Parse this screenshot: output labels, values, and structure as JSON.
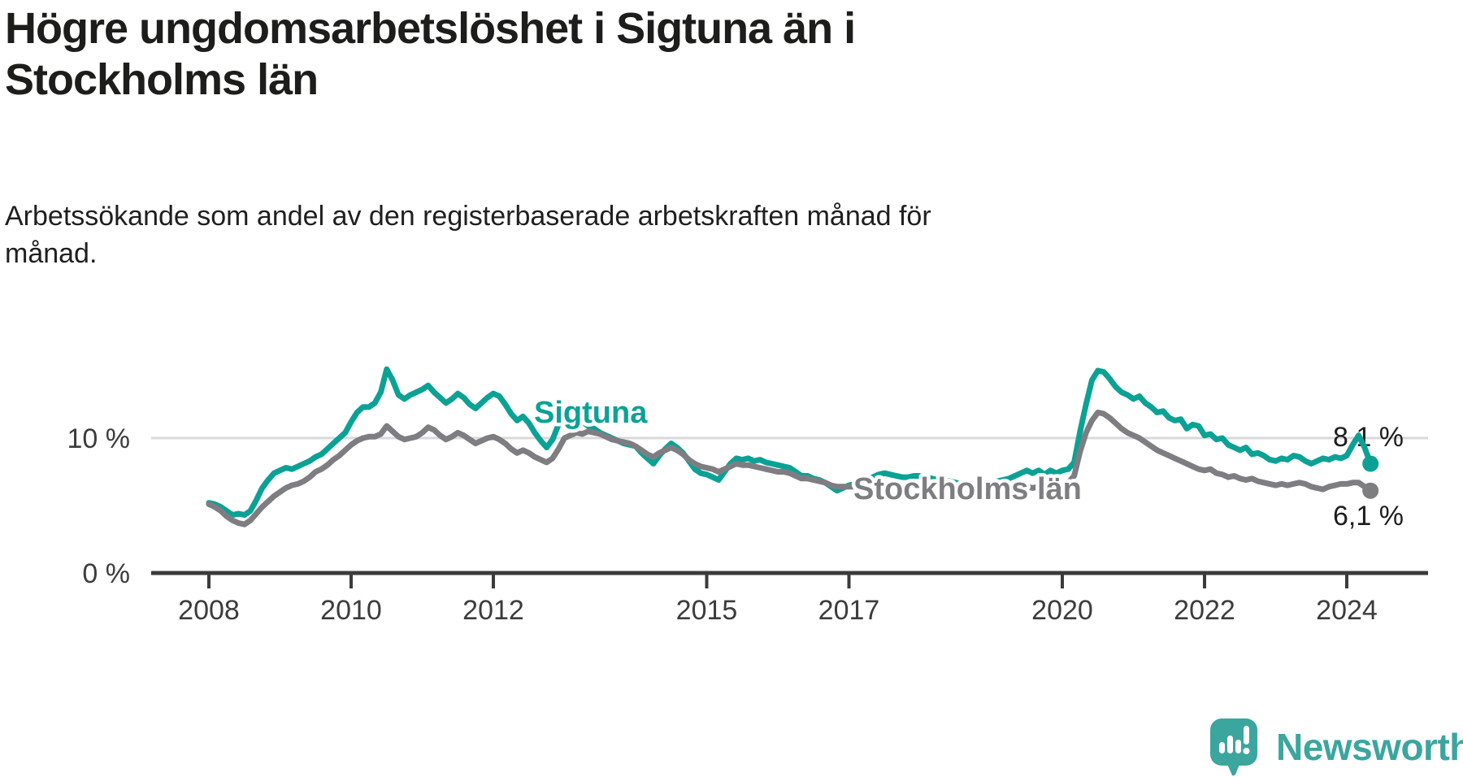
{
  "chart_data": {
    "type": "line",
    "title": "Högre ungdomsarbetslöshet i Sigtuna än i\nStockholms län",
    "subtitle": "Arbetssökande som andel av den registerbaserade arbetskraften månad för\nmånad.",
    "x_start": "2008-01",
    "x_interval": "monthly",
    "x_end": "2024-05",
    "x_tick_years": [
      2008,
      2010,
      2012,
      2015,
      2017,
      2020,
      2022,
      2024
    ],
    "y_ticks": [
      {
        "value": 10,
        "label": "10 %"
      },
      {
        "value": 0,
        "label": "0 %"
      }
    ],
    "ylim": [
      0,
      16.5
    ],
    "grid": "single-line-at-10",
    "legend": "inline-labels",
    "unit": "%",
    "colors": {
      "sigtuna": "#0ba295",
      "stockholm": "#7e7e82",
      "grid": "#d9d9d9",
      "axis": "#3b3b3b",
      "tick_text": "#3c3c3c",
      "value_text": "#1d1d1b",
      "halo": "#ffffff"
    },
    "series": [
      {
        "name": "Sigtuna",
        "end_label": "8,1 %",
        "end_value": 8.1,
        "values": [
          5.2,
          5.1,
          4.9,
          4.6,
          4.3,
          4.4,
          4.3,
          4.6,
          5.4,
          6.3,
          6.9,
          7.4,
          7.6,
          7.8,
          7.7,
          7.9,
          8.1,
          8.3,
          8.6,
          8.8,
          9.2,
          9.6,
          10.0,
          10.4,
          11.2,
          11.9,
          12.3,
          12.3,
          12.6,
          13.4,
          15.1,
          14.3,
          13.2,
          12.9,
          13.2,
          13.4,
          13.6,
          13.9,
          13.4,
          13.0,
          12.6,
          12.9,
          13.3,
          13.0,
          12.5,
          12.2,
          12.6,
          13.0,
          13.3,
          13.1,
          12.5,
          11.8,
          11.3,
          11.6,
          11.1,
          10.4,
          9.8,
          9.3,
          9.9,
          11.0,
          12.3,
          12.0,
          11.6,
          11.2,
          10.9,
          10.7,
          10.4,
          10.2,
          10.0,
          9.8,
          9.6,
          9.5,
          9.4,
          8.9,
          8.5,
          8.1,
          8.7,
          9.2,
          9.6,
          9.3,
          8.9,
          8.3,
          7.7,
          7.4,
          7.3,
          7.1,
          6.9,
          7.5,
          8.1,
          8.5,
          8.4,
          8.5,
          8.3,
          8.4,
          8.2,
          8.1,
          8.0,
          7.9,
          7.8,
          7.5,
          7.2,
          7.2,
          7.0,
          6.9,
          6.7,
          6.4,
          6.1,
          6.3,
          6.5,
          6.6,
          6.7,
          6.9,
          7.1,
          7.3,
          7.4,
          7.3,
          7.2,
          7.1,
          7.1,
          7.2,
          7.2,
          7.1,
          7.0,
          6.9,
          6.8,
          6.8,
          6.7,
          6.6,
          6.6,
          6.5,
          6.5,
          6.6,
          6.7,
          6.8,
          6.9,
          7.0,
          7.2,
          7.4,
          7.6,
          7.4,
          7.6,
          7.3,
          7.6,
          7.4,
          7.6,
          7.7,
          8.2,
          10.5,
          12.5,
          14.3,
          15.0,
          14.9,
          14.4,
          13.8,
          13.4,
          13.2,
          12.9,
          13.1,
          12.6,
          12.3,
          11.9,
          12.0,
          11.5,
          11.3,
          11.4,
          10.7,
          11.0,
          10.9,
          10.2,
          10.3,
          9.9,
          10.0,
          9.5,
          9.3,
          9.1,
          9.3,
          8.8,
          8.9,
          8.7,
          8.4,
          8.3,
          8.5,
          8.4,
          8.7,
          8.6,
          8.3,
          8.1,
          8.3,
          8.5,
          8.4,
          8.6,
          8.5,
          8.7,
          9.5,
          10.2,
          9.3,
          8.1
        ]
      },
      {
        "name": "Stockholms län",
        "end_label": "6,1 %",
        "end_value": 6.1,
        "values": [
          5.1,
          4.9,
          4.6,
          4.2,
          3.9,
          3.7,
          3.6,
          3.9,
          4.4,
          4.9,
          5.3,
          5.7,
          6.0,
          6.3,
          6.5,
          6.6,
          6.8,
          7.1,
          7.5,
          7.7,
          8.0,
          8.4,
          8.7,
          9.1,
          9.5,
          9.8,
          10.0,
          10.1,
          10.1,
          10.3,
          10.9,
          10.5,
          10.1,
          9.9,
          10.0,
          10.1,
          10.4,
          10.8,
          10.6,
          10.2,
          9.9,
          10.1,
          10.4,
          10.2,
          9.9,
          9.6,
          9.8,
          10.0,
          10.1,
          9.9,
          9.6,
          9.2,
          8.9,
          9.1,
          8.9,
          8.6,
          8.4,
          8.2,
          8.5,
          9.2,
          10.0,
          10.2,
          10.4,
          10.3,
          10.5,
          10.4,
          10.3,
          10.1,
          9.9,
          9.8,
          9.7,
          9.6,
          9.4,
          9.1,
          8.8,
          8.6,
          8.9,
          9.1,
          9.3,
          9.1,
          8.8,
          8.4,
          8.1,
          7.9,
          7.8,
          7.7,
          7.5,
          7.7,
          7.9,
          8.1,
          8.0,
          8.0,
          7.9,
          7.8,
          7.7,
          7.6,
          7.5,
          7.5,
          7.4,
          7.2,
          7.0,
          7.0,
          6.9,
          6.8,
          6.7,
          6.5,
          6.4,
          6.4,
          6.4,
          6.4,
          6.4,
          6.5,
          6.5,
          6.6,
          6.6,
          6.5,
          6.4,
          6.4,
          6.3,
          6.3,
          6.3,
          6.2,
          6.1,
          6.1,
          6.0,
          6.0,
          5.9,
          5.9,
          5.9,
          5.8,
          5.8,
          5.9,
          5.9,
          6.0,
          6.0,
          6.1,
          6.2,
          6.3,
          6.4,
          6.3,
          6.4,
          6.4,
          6.5,
          6.5,
          6.6,
          6.7,
          7.2,
          9.0,
          10.4,
          11.3,
          11.9,
          11.8,
          11.5,
          11.1,
          10.7,
          10.4,
          10.2,
          10.0,
          9.7,
          9.4,
          9.1,
          8.9,
          8.7,
          8.5,
          8.3,
          8.1,
          7.9,
          7.7,
          7.6,
          7.7,
          7.4,
          7.3,
          7.1,
          7.2,
          7.0,
          6.9,
          7.0,
          6.8,
          6.7,
          6.6,
          6.5,
          6.6,
          6.5,
          6.6,
          6.7,
          6.6,
          6.4,
          6.3,
          6.2,
          6.4,
          6.5,
          6.6,
          6.6,
          6.7,
          6.7,
          6.4,
          6.1
        ]
      }
    ]
  },
  "footer": {
    "brand": "Newsworthy"
  }
}
